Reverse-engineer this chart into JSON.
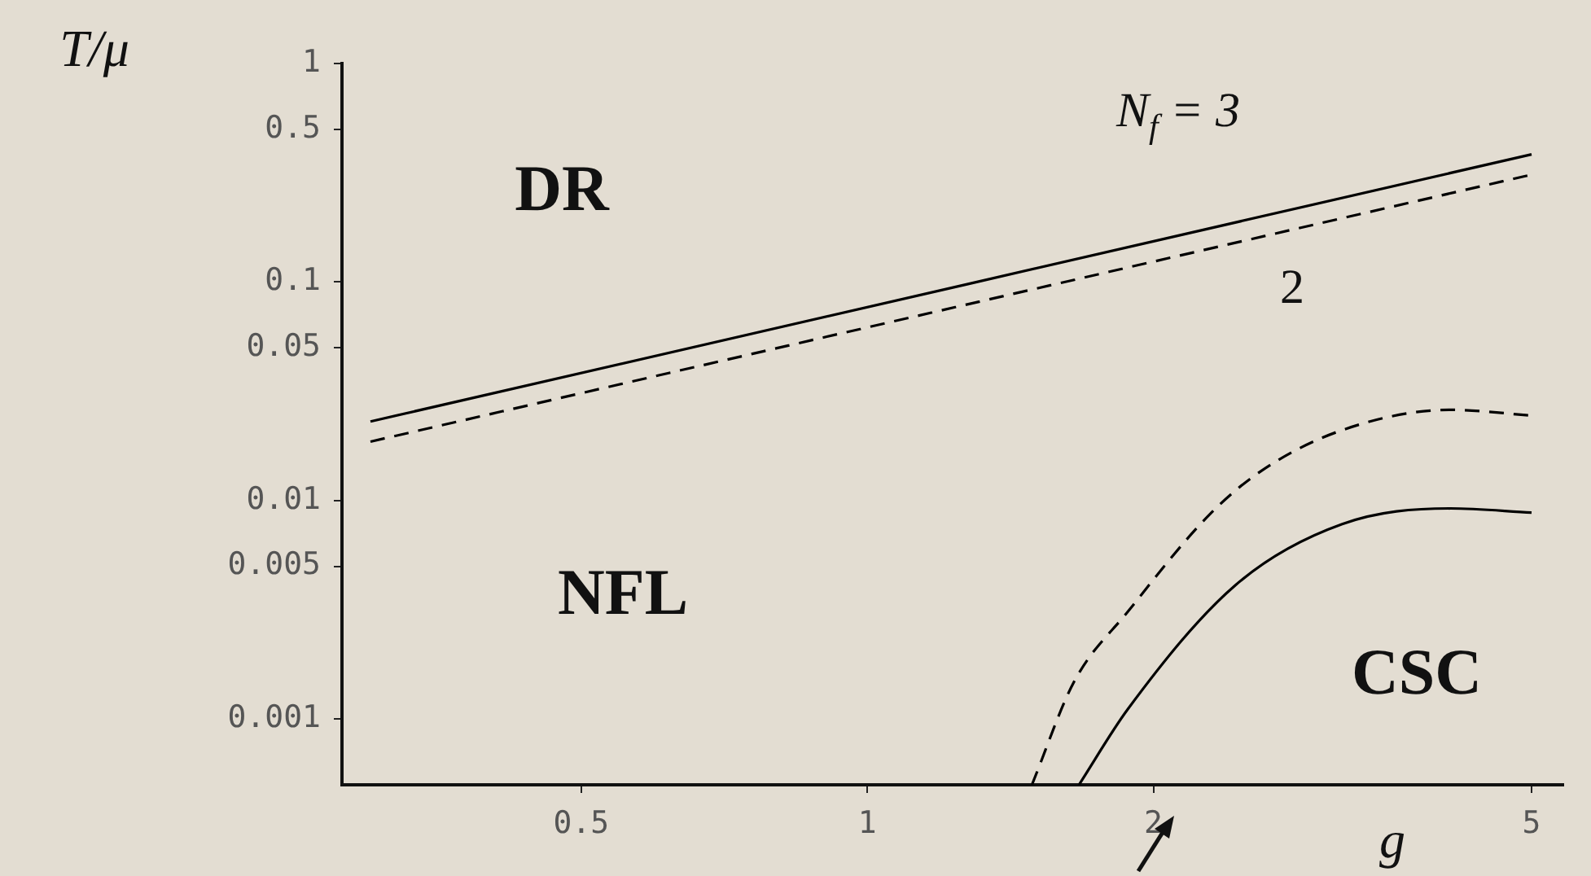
{
  "chart_data": {
    "type": "line",
    "xlabel": "g",
    "ylabel": "T/μ",
    "log": "xy",
    "xlim": [
      0.28,
      5.4
    ],
    "ylim": [
      0.0005,
      1
    ],
    "xticks": [
      0.5,
      1,
      2,
      5
    ],
    "yticks": [
      0.001,
      0.005,
      0.01,
      0.05,
      0.1,
      0.5,
      1
    ],
    "annotations": [
      "DR",
      "NFL",
      "CSC"
    ],
    "series": [
      {
        "name": "N$_{f}$ = 3",
        "color": "#000000",
        "line_style": "solid",
        "x": [
          0.3,
          5
        ],
        "values": [
          0.023,
          0.384
        ]
      },
      {
        "name": "2",
        "color": "#000000",
        "line_style": "dashed",
        "x": [
          0.3,
          5
        ],
        "values": [
          0.0186,
          0.31
        ]
      },
      {
        "color": "#000000",
        "line_style": "solid",
        "x": [
          1.67,
          1.88,
          2.44,
          3.16,
          4.11,
          5
        ],
        "values": [
          0.0005,
          0.00111,
          0.0041,
          0.0078,
          0.0092,
          0.0088
        ]
      },
      {
        "color": "#000000",
        "line_style": "dashed",
        "x": [
          1.49,
          1.65,
          1.88,
          2.29,
          2.6,
          3.16,
          4.11,
          5
        ],
        "values": [
          0.0005,
          0.00148,
          0.0031,
          0.0086,
          0.0137,
          0.021,
          0.026,
          0.0245
        ]
      }
    ]
  }
}
